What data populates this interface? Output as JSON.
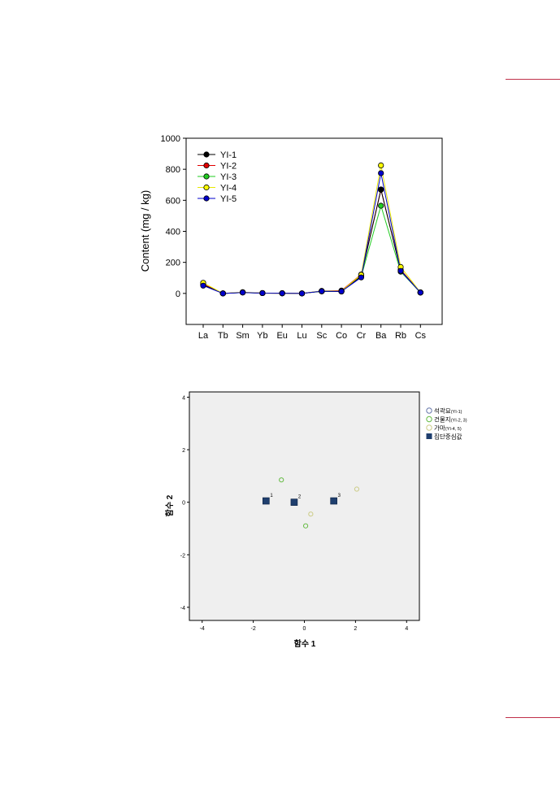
{
  "chart_data": [
    {
      "type": "line",
      "title": "",
      "xlabel": "",
      "ylabel": "Content (mg / kg)",
      "ylim": [
        -200,
        1000
      ],
      "yticks": [
        0,
        200,
        400,
        600,
        800,
        1000
      ],
      "categories": [
        "La",
        "Tb",
        "Sm",
        "Yb",
        "Eu",
        "Lu",
        "Sc",
        "Co",
        "Cr",
        "Ba",
        "Rb",
        "Cs"
      ],
      "legend_position": "top-left",
      "grid": false,
      "series": [
        {
          "name": "YI-1",
          "color": "#000000",
          "values": [
            55,
            0,
            6,
            2,
            1,
            0,
            14,
            13,
            112,
            670,
            148,
            6
          ]
        },
        {
          "name": "YI-2",
          "color": "#e00000",
          "values": [
            60,
            0,
            7,
            2,
            1,
            0,
            15,
            18,
            122,
            668,
            152,
            6
          ]
        },
        {
          "name": "YI-3",
          "color": "#22cc22",
          "values": [
            58,
            0,
            6,
            2,
            1,
            0,
            13,
            12,
            108,
            565,
            140,
            5
          ]
        },
        {
          "name": "YI-4",
          "color": "#ffff00",
          "values": [
            68,
            0,
            8,
            2,
            1,
            0,
            16,
            15,
            120,
            825,
            170,
            7
          ]
        },
        {
          "name": "YI-5",
          "color": "#0000cc",
          "values": [
            50,
            0,
            6,
            2,
            1,
            0,
            14,
            13,
            103,
            775,
            145,
            6
          ]
        }
      ]
    },
    {
      "type": "scatter",
      "title": "",
      "xlabel": "함수 1",
      "ylabel": "함수 2",
      "xlim": [
        -4.5,
        4.5
      ],
      "ylim": [
        -4.5,
        4.2
      ],
      "xticks": [
        -4,
        -2,
        0,
        2,
        4
      ],
      "yticks": [
        -4,
        -2,
        0,
        2,
        4
      ],
      "legend_position": "right",
      "grid": false,
      "series": [
        {
          "name": "석곽묘",
          "suffix": "(YI-1)",
          "color": "#6677aa",
          "points": []
        },
        {
          "name": "건물지",
          "suffix": "(YI-2, 3)",
          "color": "#66bb44",
          "points": [
            {
              "x": -0.9,
              "y": 0.85
            },
            {
              "x": 0.05,
              "y": -0.9
            }
          ]
        },
        {
          "name": "가마",
          "suffix": "(YI-4, 5)",
          "color": "#cccc88",
          "points": [
            {
              "x": 0.25,
              "y": -0.45
            },
            {
              "x": 2.05,
              "y": 0.5
            }
          ]
        }
      ],
      "centroids": {
        "name": "집단중심값",
        "color": "#1f3f6e",
        "points": [
          {
            "label": "1",
            "x": -1.5,
            "y": 0.05
          },
          {
            "label": "2",
            "x": -0.4,
            "y": 0.0
          },
          {
            "label": "3",
            "x": 1.15,
            "y": 0.05
          }
        ]
      }
    }
  ]
}
